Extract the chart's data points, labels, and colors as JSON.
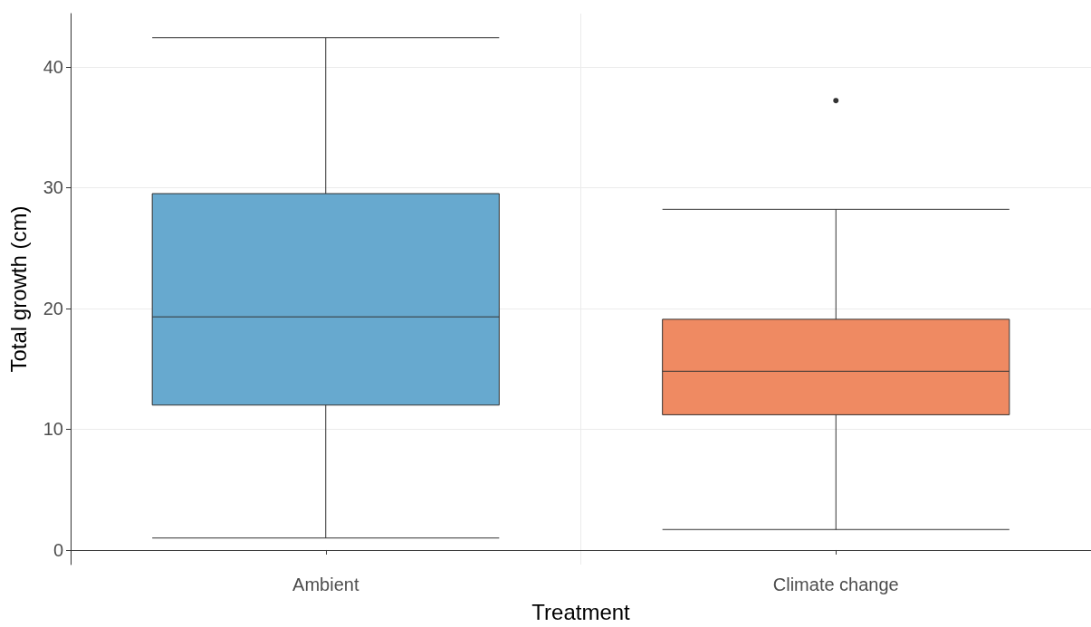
{
  "chart_data": {
    "type": "box",
    "xlabel": "Treatment",
    "ylabel": "Total growth (cm)",
    "categories": [
      "Ambient",
      "Climate change"
    ],
    "boxes": [
      {
        "low": 1.0,
        "q1": 12.0,
        "median": 19.3,
        "q3": 29.5,
        "high": 42.4
      },
      {
        "low": 1.7,
        "q1": 11.2,
        "median": 14.8,
        "q3": 19.1,
        "high": 28.2,
        "outliers": [
          37.2
        ]
      }
    ],
    "colors": [
      "#67a9cf",
      "#ef8a62"
    ],
    "ylim": [
      -1.2,
      44.4
    ],
    "yticks": [
      0,
      10,
      20,
      30,
      40
    ],
    "grid": true
  }
}
